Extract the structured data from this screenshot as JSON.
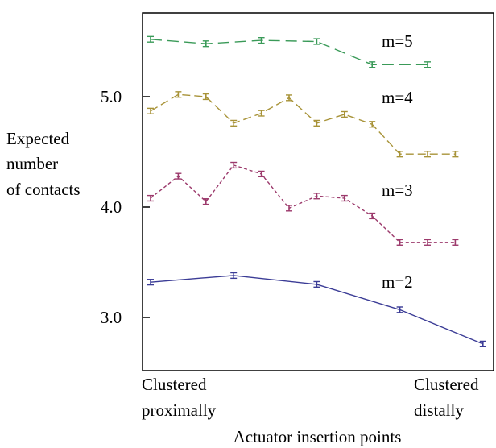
{
  "chart_data": {
    "type": "line",
    "ylabel": [
      "Expected",
      "number",
      "of contacts"
    ],
    "xlabel": "Actuator insertion points",
    "x_tick_labels": {
      "left": [
        "Clustered",
        "proximally"
      ],
      "right": [
        "Clustered",
        "distally"
      ]
    },
    "ylim": [
      2.5,
      6.0
    ],
    "y_ticks": [
      "3.0",
      "4.0",
      "5.0",
      "6.0"
    ],
    "y_tick_values": [
      3.0,
      4.0,
      5.0,
      6.0
    ],
    "error_half_width": 0.025,
    "series": [
      {
        "name": "m=2",
        "color": "#3b3c96",
        "dash": "solid",
        "x": [
          0,
          3,
          6,
          9,
          12
        ],
        "y": [
          3.32,
          3.38,
          3.3,
          3.07,
          2.76
        ]
      },
      {
        "name": "m=3",
        "color": "#9c3a6c",
        "dash": "short-dash",
        "x": [
          0,
          1,
          2,
          3,
          4,
          5,
          6,
          7,
          8,
          9,
          10,
          11
        ],
        "y": [
          4.08,
          4.28,
          4.05,
          4.38,
          4.3,
          3.99,
          4.1,
          4.08,
          3.92,
          3.68,
          3.68,
          3.68
        ]
      },
      {
        "name": "m=4",
        "color": "#a89338",
        "dash": "medium-dash",
        "x": [
          0,
          1,
          2,
          3,
          4,
          5,
          6,
          7,
          8,
          9,
          10,
          11
        ],
        "y": [
          4.87,
          5.02,
          5.0,
          4.76,
          4.85,
          4.99,
          4.76,
          4.84,
          4.75,
          4.48,
          4.48,
          4.48
        ]
      },
      {
        "name": "m=5",
        "color": "#3a9a58",
        "dash": "long-dash",
        "x": [
          0,
          2,
          4,
          6,
          8,
          10
        ],
        "y": [
          5.52,
          5.48,
          5.51,
          5.5,
          5.29,
          5.29
        ]
      }
    ]
  }
}
